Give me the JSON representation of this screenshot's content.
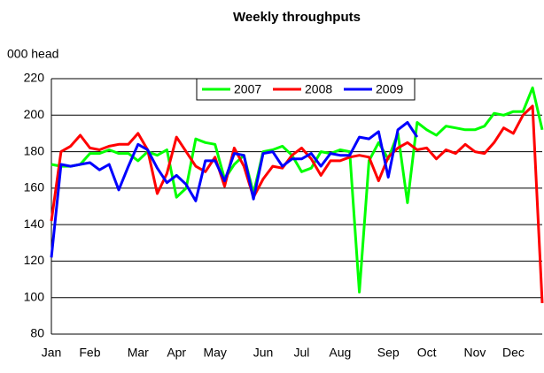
{
  "chart_data": {
    "type": "line",
    "title": "Weekly throughputs",
    "y_label": "000 head",
    "categories": [
      "Jan",
      null,
      null,
      null,
      "Feb",
      null,
      null,
      null,
      null,
      "Mar",
      null,
      null,
      null,
      "Apr",
      null,
      null,
      null,
      "May",
      null,
      null,
      null,
      null,
      "Jun",
      null,
      null,
      null,
      "Jul",
      null,
      null,
      null,
      "Aug",
      null,
      null,
      null,
      null,
      "Sep",
      null,
      null,
      null,
      "Oct",
      null,
      null,
      null,
      null,
      "Nov",
      null,
      null,
      null,
      "Dec",
      null,
      null,
      null
    ],
    "series": [
      {
        "name": "2007",
        "color": "#00ff00",
        "values": [
          173,
          172,
          172,
          173,
          179,
          179,
          181,
          179,
          179,
          175,
          180,
          178,
          181,
          155,
          160,
          187,
          185,
          184,
          165,
          173,
          178,
          157,
          180,
          181,
          183,
          178,
          169,
          171,
          180,
          179,
          181,
          180,
          103,
          175,
          185,
          176,
          190,
          152,
          196,
          192,
          189,
          194,
          193,
          192,
          192,
          194,
          201,
          200,
          202,
          202,
          215,
          192
        ]
      },
      {
        "name": "2008",
        "color": "#ff0000",
        "values": [
          142,
          180,
          183,
          189,
          182,
          181,
          183,
          184,
          184,
          190,
          181,
          157,
          168,
          188,
          180,
          172,
          169,
          177,
          161,
          182,
          172,
          155,
          165,
          172,
          171,
          178,
          182,
          176,
          167,
          175,
          175,
          177,
          178,
          177,
          164,
          177,
          182,
          185,
          181,
          182,
          176,
          181,
          179,
          184,
          180,
          179,
          185,
          193,
          190,
          200,
          205,
          97
        ]
      },
      {
        "name": "2009",
        "color": "#0000ff",
        "values": [
          122,
          173,
          172,
          173,
          174,
          170,
          173,
          159,
          172,
          184,
          181,
          171,
          163,
          167,
          162,
          153,
          175,
          175,
          164,
          179,
          178,
          154,
          179,
          180,
          172,
          176,
          176,
          179,
          172,
          179,
          178,
          178,
          188,
          187,
          191,
          166,
          192,
          196,
          188,
          null,
          null,
          null,
          null,
          null,
          null,
          null,
          null,
          null,
          null,
          null,
          null,
          null
        ]
      }
    ],
    "ylim": [
      80,
      220
    ],
    "yticks": [
      80,
      100,
      120,
      140,
      160,
      180,
      200,
      220
    ],
    "grid": true,
    "legend": "top"
  }
}
